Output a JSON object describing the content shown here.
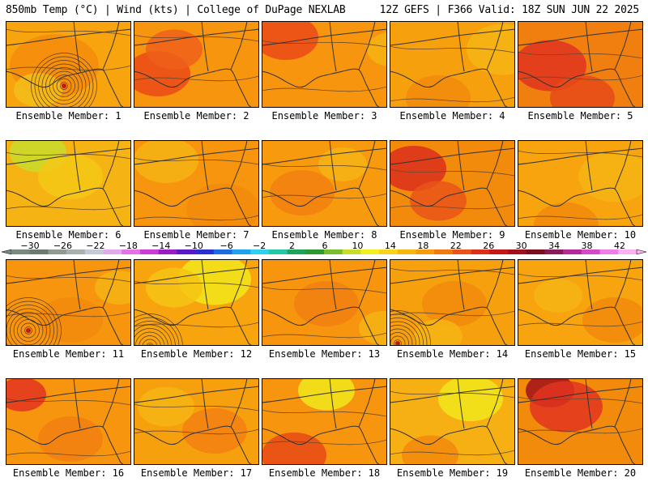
{
  "header": {
    "left_title": "850mb Temp (°C) | Wind (kts) | College of DuPage NEXLAB",
    "right_title": "12Z GEFS | F366 Valid: 18Z SUN JUN 22 2025"
  },
  "colorbar": {
    "labels": [
      "−30",
      "−26",
      "−22",
      "−18",
      "−14",
      "−10",
      "−6",
      "−2",
      "2",
      "6",
      "10",
      "14",
      "18",
      "22",
      "26",
      "30",
      "34",
      "38",
      "42"
    ],
    "colors": [
      "#7a8a80",
      "#6b7b70",
      "#8f9a90",
      "#a9b0b0",
      "#c6cad6",
      "#e2a9ec",
      "#e672e6",
      "#cc3cd7",
      "#9a1cc4",
      "#5a18c8",
      "#2a2fd2",
      "#1d6be0",
      "#1ea2ee",
      "#2fd0f2",
      "#25c8a6",
      "#1ea35a",
      "#2d9a2f",
      "#78bd2a",
      "#c9dc2a",
      "#f1f01a",
      "#f8d51a",
      "#f7b60f",
      "#f79b0c",
      "#f2790e",
      "#ea541a",
      "#dc2f1c",
      "#c41818",
      "#a2101a",
      "#7a0e1c",
      "#8a1a58",
      "#b52a98",
      "#d54ac8",
      "#ef7ee6",
      "#f8b4f2"
    ]
  },
  "members": [
    {
      "caption": "Ensemble Member: 1",
      "base": "#f7a40e",
      "patches": [
        [
          "#f58c0c",
          40,
          40,
          55
        ],
        [
          "#f2be1a",
          20,
          70,
          30
        ]
      ],
      "vortex": [
        72,
        80
      ]
    },
    {
      "caption": "Ensemble Member: 2",
      "base": "#f7950e",
      "patches": [
        [
          "#ea4a18",
          10,
          50,
          40
        ],
        [
          "#f0601a",
          30,
          20,
          35
        ]
      ],
      "vortex": null
    },
    {
      "caption": "Ensemble Member: 3",
      "base": "#f7950e",
      "patches": [
        [
          "#ea4a18",
          10,
          5,
          40
        ],
        [
          "#f6b414",
          140,
          20,
          30
        ]
      ],
      "vortex": null
    },
    {
      "caption": "Ensemble Member: 4",
      "base": "#f7a00e",
      "patches": [
        [
          "#f6b414",
          120,
          20,
          45
        ],
        [
          "#f28a0c",
          40,
          80,
          40
        ]
      ],
      "vortex": null
    },
    {
      "caption": "Ensemble Member: 5",
      "base": "#f07f10",
      "patches": [
        [
          "#e23420",
          20,
          40,
          45
        ],
        [
          "#e84a18",
          60,
          80,
          40
        ]
      ],
      "vortex": null
    },
    {
      "caption": "Ensemble Member: 6",
      "base": "#f6b414",
      "patches": [
        [
          "#c9dc2a",
          20,
          0,
          35
        ],
        [
          "#f5c816",
          60,
          30,
          40
        ]
      ],
      "vortex": null
    },
    {
      "caption": "Ensemble Member: 7",
      "base": "#f7950e",
      "patches": [
        [
          "#f6b414",
          20,
          10,
          40
        ],
        [
          "#f28a0c",
          90,
          70,
          45
        ]
      ],
      "vortex": null
    },
    {
      "caption": "Ensemble Member: 8",
      "base": "#f79a0e",
      "patches": [
        [
          "#f28010",
          30,
          50,
          40
        ],
        [
          "#f6b414",
          80,
          15,
          30
        ]
      ],
      "vortex": null
    },
    {
      "caption": "Ensemble Member: 9",
      "base": "#f28a0c",
      "patches": [
        [
          "#dc2f1c",
          10,
          20,
          40
        ],
        [
          "#ea541a",
          40,
          60,
          35
        ]
      ],
      "vortex": null
    },
    {
      "caption": "Ensemble Member: 10",
      "base": "#f7a40e",
      "patches": [
        [
          "#f6b414",
          100,
          30,
          45
        ],
        [
          "#f28a0c",
          40,
          90,
          40
        ]
      ],
      "vortex": null
    },
    {
      "caption": "Ensemble Member: 11",
      "base": "#f7950e",
      "patches": [
        [
          "#f28a0c",
          60,
          60,
          40
        ],
        [
          "#f6b414",
          120,
          20,
          30
        ]
      ],
      "vortex": [
        28,
        88
      ]
    },
    {
      "caption": "Ensemble Member: 12",
      "base": "#f7a40e",
      "patches": [
        [
          "#f1e81a",
          80,
          10,
          45
        ],
        [
          "#f6c414",
          30,
          20,
          35
        ]
      ],
      "vortex": [
        20,
        108
      ]
    },
    {
      "caption": "Ensemble Member: 13",
      "base": "#f7950e",
      "patches": [
        [
          "#f28010",
          60,
          40,
          40
        ],
        [
          "#f6b414",
          130,
          70,
          30
        ]
      ],
      "vortex": null
    },
    {
      "caption": "Ensemble Member: 14",
      "base": "#f7a00e",
      "patches": [
        [
          "#f28a0c",
          60,
          40,
          40
        ],
        [
          "#f6b414",
          40,
          80,
          30
        ]
      ],
      "vortex": [
        10,
        104
      ]
    },
    {
      "caption": "Ensemble Member: 15",
      "base": "#f7a40e",
      "patches": [
        [
          "#f28a0c",
          100,
          60,
          40
        ],
        [
          "#f6b414",
          30,
          30,
          30
        ]
      ],
      "vortex": null
    },
    {
      "caption": "Ensemble Member: 16",
      "base": "#f7950e",
      "patches": [
        [
          "#e23420",
          0,
          5,
          30
        ],
        [
          "#f28010",
          60,
          60,
          40
        ]
      ],
      "vortex": null
    },
    {
      "caption": "Ensemble Member: 17",
      "base": "#f7a00e",
      "patches": [
        [
          "#f28010",
          80,
          50,
          40
        ],
        [
          "#f6b414",
          20,
          20,
          35
        ]
      ],
      "vortex": null
    },
    {
      "caption": "Ensemble Member: 18",
      "base": "#f7950e",
      "patches": [
        [
          "#e84a18",
          20,
          80,
          40
        ],
        [
          "#f1e81a",
          60,
          0,
          35
        ]
      ],
      "vortex": null
    },
    {
      "caption": "Ensemble Member: 19",
      "base": "#f7b014",
      "patches": [
        [
          "#f1e81a",
          80,
          10,
          40
        ],
        [
          "#f28a0c",
          30,
          80,
          35
        ]
      ],
      "vortex": null
    },
    {
      "caption": "Ensemble Member: 20",
      "base": "#f28a0c",
      "patches": [
        [
          "#a2101a",
          20,
          0,
          30
        ],
        [
          "#e23420",
          40,
          20,
          45
        ]
      ],
      "vortex": null
    }
  ]
}
